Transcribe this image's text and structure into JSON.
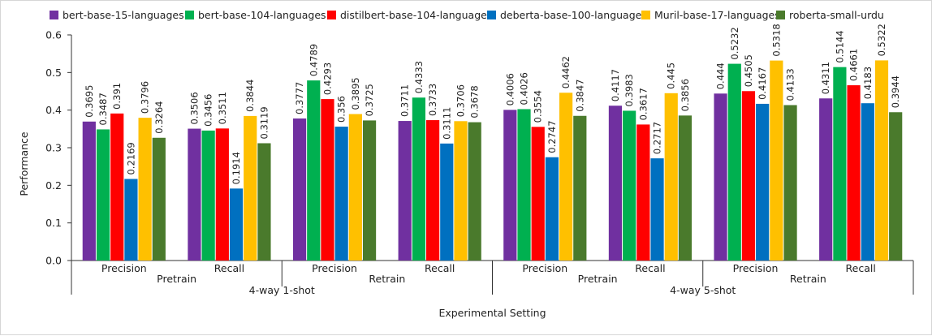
{
  "chart_data": {
    "type": "bar",
    "title": "",
    "xlabel": "Experimental Setting",
    "ylabel": "Performance",
    "ylim": [
      0,
      0.6
    ],
    "yticks": [
      "0.0",
      "0.1",
      "0.2",
      "0.3",
      "0.4",
      "0.5",
      "0.6"
    ],
    "grid": false,
    "legend_position": "top",
    "groups": [
      {
        "setting": "4-way 1-shot",
        "mode": "Pretrain",
        "metric": "Precision"
      },
      {
        "setting": "4-way 1-shot",
        "mode": "Pretrain",
        "metric": "Recall"
      },
      {
        "setting": "4-way 1-shot",
        "mode": "Retrain",
        "metric": "Precision"
      },
      {
        "setting": "4-way 1-shot",
        "mode": "Retrain",
        "metric": "Recall"
      },
      {
        "setting": "4-way 5-shot",
        "mode": "Pretrain",
        "metric": "Precision"
      },
      {
        "setting": "4-way 5-shot",
        "mode": "Pretrain",
        "metric": "Recall"
      },
      {
        "setting": "4-way 5-shot",
        "mode": "Retrain",
        "metric": "Precision"
      },
      {
        "setting": "4-way 5-shot",
        "mode": "Retrain",
        "metric": "Recall"
      }
    ],
    "categories": [
      "Precision",
      "Recall",
      "Precision",
      "Recall",
      "Precision",
      "Recall",
      "Precision",
      "Recall"
    ],
    "mode_labels": [
      "Pretrain",
      "Retrain",
      "Pretrain",
      "Retrain"
    ],
    "setting_labels": [
      "4-way 1-shot",
      "4-way 5-shot"
    ],
    "series": [
      {
        "name": "bert-base-15-languages",
        "color": "#7030a0",
        "values": [
          0.3695,
          0.3506,
          0.3777,
          0.3711,
          0.4006,
          0.4117,
          0.444,
          0.4311
        ],
        "labels": [
          "0.3695",
          "0.3506",
          "0.3777",
          "0.3711",
          "0.4006",
          "0.4117",
          "0.444",
          "0.4311"
        ]
      },
      {
        "name": "bert-base-104-languages",
        "color": "#00b050",
        "values": [
          0.3487,
          0.3456,
          0.4789,
          0.4333,
          0.4026,
          0.3983,
          0.5232,
          0.5144
        ],
        "labels": [
          "0.3487",
          "0.3456",
          "0.4789",
          "0.4333",
          "0.4026",
          "0.3983",
          "0.5232",
          "0.5144"
        ]
      },
      {
        "name": "distilbert-base-104-languages",
        "color": "#ff0000",
        "values": [
          0.391,
          0.3511,
          0.4293,
          0.3733,
          0.3554,
          0.3617,
          0.4505,
          0.4661
        ],
        "labels": [
          "0.391",
          "0.3511",
          "0.4293",
          "0.3733",
          "0.3554",
          "0.3617",
          "0.4505",
          "0.4661"
        ]
      },
      {
        "name": "deberta-base-100-languages",
        "color": "#0070c0",
        "values": [
          0.2169,
          0.1914,
          0.356,
          0.3111,
          0.2747,
          0.2717,
          0.4167,
          0.4183
        ],
        "labels": [
          "0.2169",
          "0.1914",
          "0.356",
          "0.3111",
          "0.2747",
          "0.2717",
          "0.4167",
          "0.4183"
        ]
      },
      {
        "name": "Muril-base-17-languages",
        "color": "#ffc000",
        "values": [
          0.3796,
          0.3844,
          0.3895,
          0.3706,
          0.4462,
          0.445,
          0.5318,
          0.5322
        ],
        "labels": [
          "0.3796",
          "0.3844",
          "0.3895",
          "0.3706",
          "0.4462",
          "0.445",
          "0.5318",
          "0.5322"
        ]
      },
      {
        "name": "roberta-small-urdu",
        "color": "#4a7a2c",
        "values": [
          0.3264,
          0.3119,
          0.3725,
          0.3678,
          0.3847,
          0.3856,
          0.4133,
          0.3944
        ],
        "labels": [
          "0.3264",
          "0.3119",
          "0.3725",
          "0.3678",
          "0.3847",
          "0.3856",
          "0.4133",
          "0.3944"
        ]
      }
    ]
  }
}
